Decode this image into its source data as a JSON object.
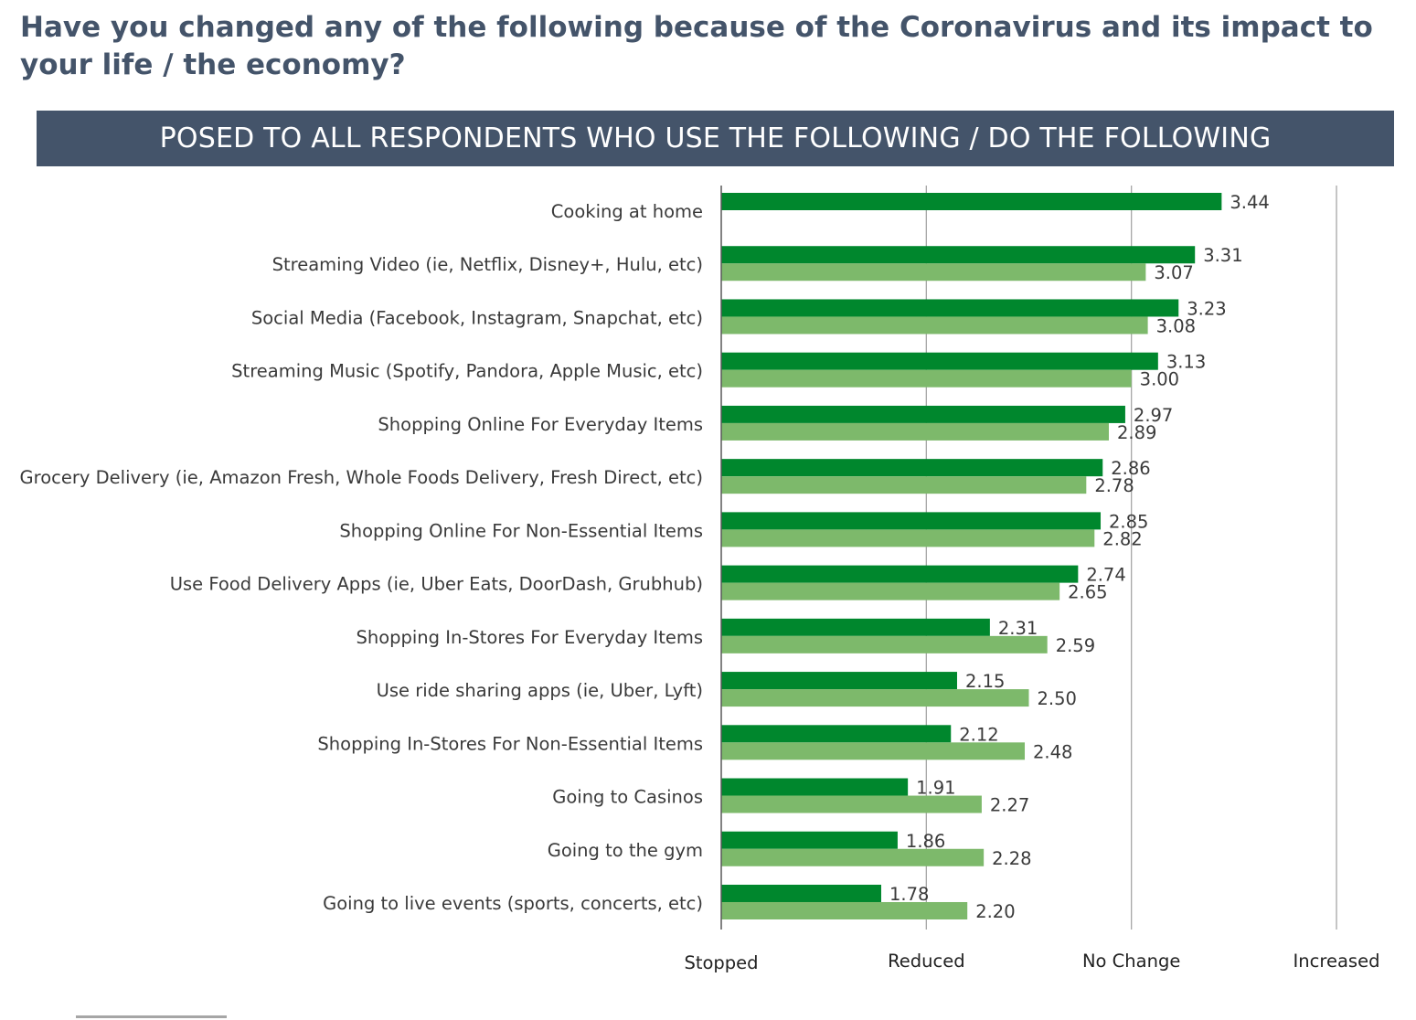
{
  "header": {
    "title": "Have you changed any of the following because of the Coronavirus and its impact to your life / the economy?",
    "banner": "POSED TO ALL RESPONDENTS WHO USE THE FOLLOWING / DO THE FOLLOWING"
  },
  "colors": {
    "title": "#44546a",
    "banner_bg": "#44546a",
    "series_dark": "#00872d",
    "series_light": "#7db96b",
    "gridline": "#a6a6a6",
    "label_text": "#3a3a3a"
  },
  "chart_data": {
    "type": "bar",
    "orientation": "horizontal",
    "categories": [
      "Cooking at home",
      "Streaming Video (ie, Netflix, Disney+, Hulu, etc)",
      "Social Media  (Facebook, Instagram, Snapchat, etc)",
      "Streaming Music (Spotify, Pandora, Apple Music, etc)",
      "Shopping Online For Everyday Items",
      "Grocery Delivery (ie, Amazon Fresh, Whole Foods Delivery, Fresh Direct, etc)",
      "Shopping Online For Non-Essential Items",
      "Use Food Delivery Apps (ie, Uber Eats, DoorDash, Grubhub)",
      "Shopping In-Stores For Everyday Items",
      "Use ride sharing apps (ie, Uber, Lyft)",
      "Shopping In-Stores For Non-Essential Items",
      "Going to Casinos",
      "Going to the gym",
      "Going to live events (sports, concerts, etc)"
    ],
    "series": [
      {
        "values": [
          3.44,
          3.31,
          3.23,
          3.13,
          2.97,
          2.86,
          2.85,
          2.74,
          2.31,
          2.15,
          2.12,
          1.91,
          1.86,
          1.78
        ],
        "value_labels": [
          "3.44",
          "3.31",
          "3.23",
          "3.13",
          "2.97",
          "2.86",
          "2.85",
          "2.74",
          "2.31",
          "2.15",
          "2.12",
          "1.91",
          "1.86",
          "1.78"
        ]
      },
      {
        "values": [
          null,
          3.07,
          3.08,
          3.0,
          2.89,
          2.78,
          2.82,
          2.65,
          2.59,
          2.5,
          2.48,
          2.27,
          2.28,
          2.2
        ],
        "value_labels": [
          null,
          "3.07",
          "3.08",
          "3.00",
          "2.89",
          "2.78",
          "2.82",
          "2.65",
          "2.59",
          "2.50",
          "2.48",
          "2.27",
          "2.28",
          "2.20"
        ]
      }
    ],
    "xlim": [
      1,
      4
    ],
    "xticks": [
      1,
      2,
      3,
      4
    ],
    "xtick_labels": [
      "Stopped",
      "Reduced",
      "No Change",
      "Increased"
    ],
    "grid": true,
    "legend": "none"
  }
}
